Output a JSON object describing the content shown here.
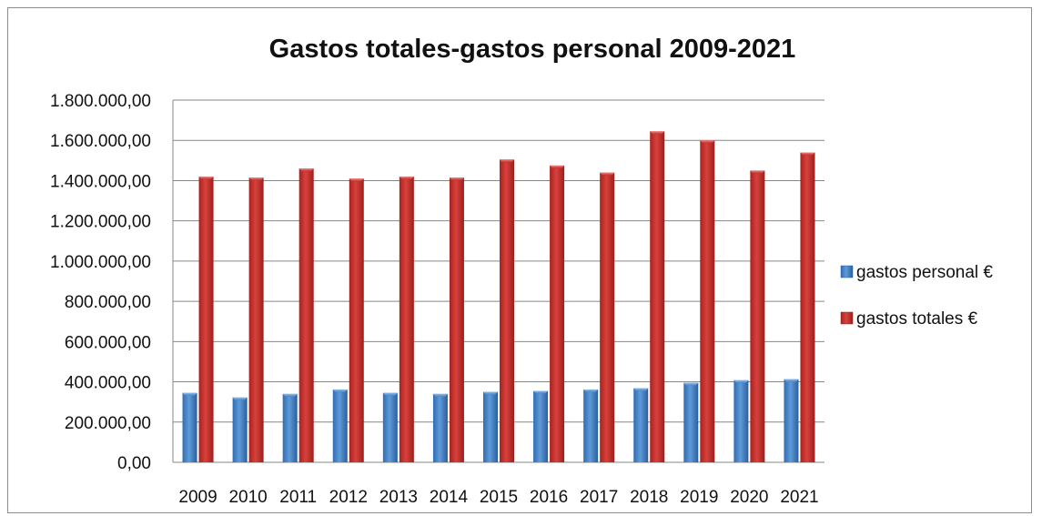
{
  "chart_data": {
    "type": "bar",
    "title": "Gastos totales-gastos personal 2009-2021",
    "xlabel": "",
    "ylabel": "",
    "categories": [
      "2009",
      "2010",
      "2011",
      "2012",
      "2013",
      "2014",
      "2015",
      "2016",
      "2017",
      "2018",
      "2019",
      "2020",
      "2021"
    ],
    "series": [
      {
        "name": "gastos personal €",
        "color": "#4a86c8",
        "values": [
          345000,
          322000,
          340000,
          362000,
          345000,
          340000,
          350000,
          355000,
          362000,
          368000,
          395000,
          408000,
          413000
        ]
      },
      {
        "name": "gastos totales €",
        "color": "#c0312d",
        "values": [
          1420000,
          1415000,
          1460000,
          1410000,
          1420000,
          1415000,
          1505000,
          1475000,
          1440000,
          1645000,
          1600000,
          1450000,
          1540000
        ]
      }
    ],
    "ylim": [
      0,
      1800000
    ],
    "yticks": [
      "0,00",
      "200.000,00",
      "400.000,00",
      "600.000,00",
      "800.000,00",
      "1.000.000,00",
      "1.200.000,00",
      "1.400.000,00",
      "1.600.000,00",
      "1.800.000,00"
    ],
    "grid": true,
    "legend_position": "right"
  }
}
